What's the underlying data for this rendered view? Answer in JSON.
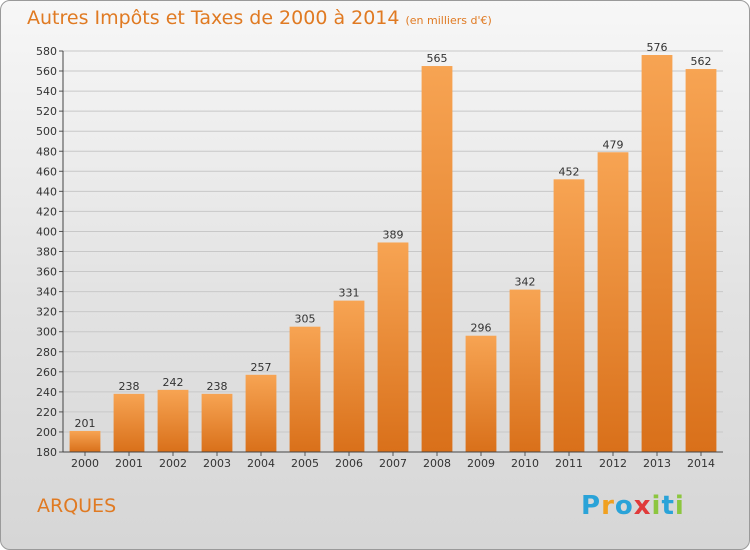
{
  "title": "Autres Impôts et Taxes de 2000 à 2014",
  "unit": "(en milliers d'€)",
  "location": "ARQUES",
  "logo": {
    "text": "Proxiti",
    "letters": [
      "P",
      "r",
      "o",
      "x",
      "i",
      "t",
      "i"
    ],
    "colors": [
      "#2aa3d8",
      "#f0a020",
      "#2aa3d8",
      "#e03a3a",
      "#8cc63f",
      "#2aa3d8",
      "#8cc63f"
    ]
  },
  "colors": {
    "bar_top": "#f7a453",
    "bar_bottom": "#d9701a",
    "accent": "#e07a22"
  },
  "chart_data": {
    "type": "bar",
    "title": "Autres Impôts et Taxes de 2000 à 2014",
    "xlabel": "",
    "ylabel": "",
    "categories": [
      "2000",
      "2001",
      "2002",
      "2003",
      "2004",
      "2005",
      "2006",
      "2007",
      "2008",
      "2009",
      "2010",
      "2011",
      "2012",
      "2013",
      "2014"
    ],
    "values": [
      201,
      238,
      242,
      238,
      257,
      305,
      331,
      389,
      565,
      296,
      342,
      452,
      479,
      576,
      562
    ],
    "ylim": [
      180,
      580
    ],
    "yticks": [
      180,
      200,
      220,
      240,
      260,
      280,
      300,
      320,
      340,
      360,
      380,
      400,
      420,
      440,
      460,
      480,
      500,
      520,
      540,
      560,
      580
    ],
    "grid": true,
    "legend": "none"
  }
}
